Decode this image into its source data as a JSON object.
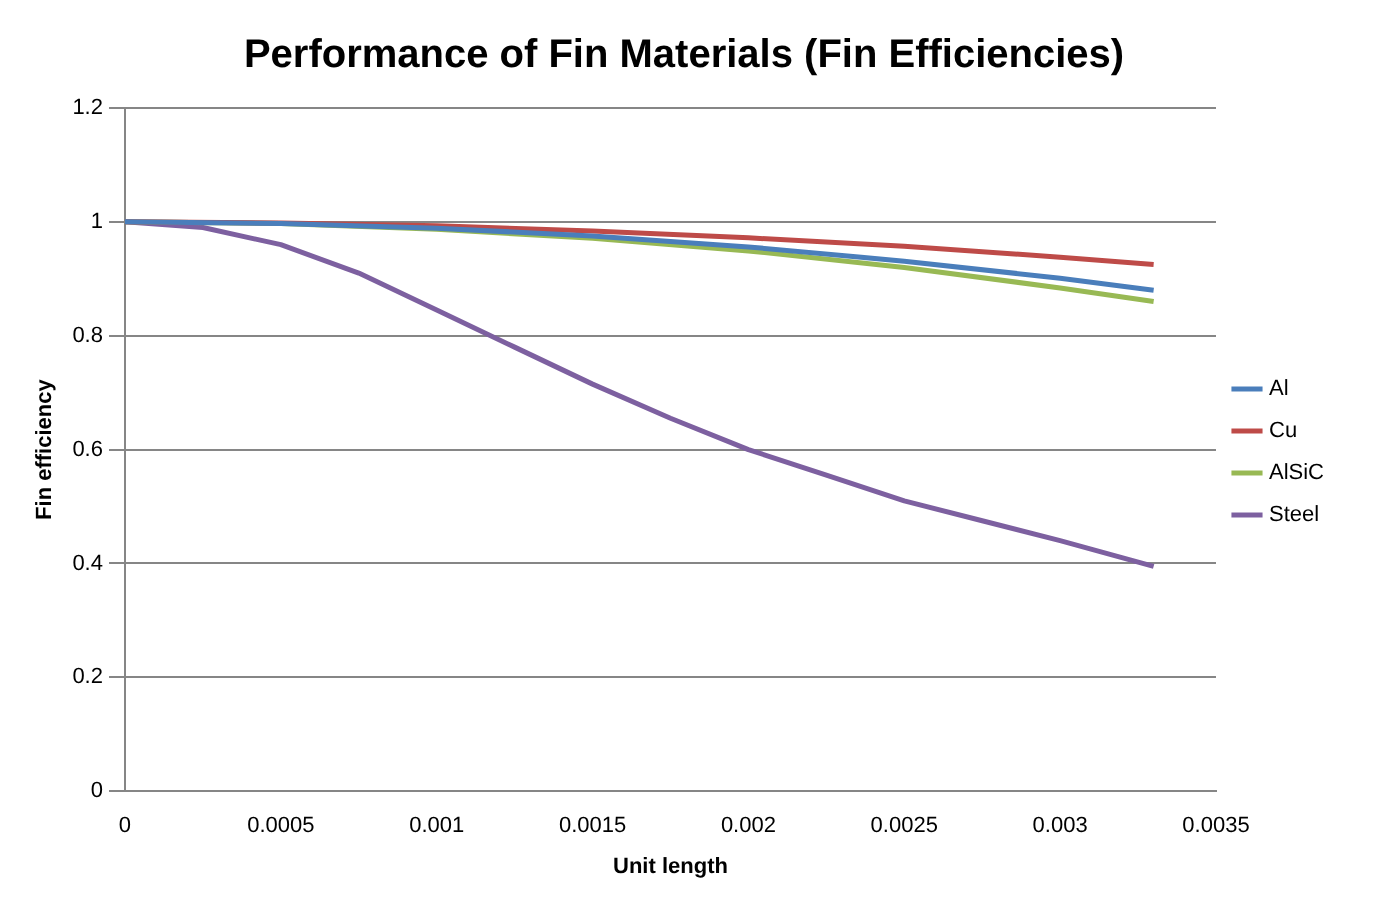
{
  "chart_data": {
    "type": "line",
    "title": "Performance of Fin Materials (Fin Efficiencies)",
    "xlabel": "Unit length",
    "ylabel": "Fin efficiency",
    "x": [
      0,
      0.0005,
      0.001,
      0.0015,
      0.002,
      0.0025,
      0.003,
      0.0033
    ],
    "series": [
      {
        "name": "Al",
        "color": "#4a7ebb",
        "values": [
          1,
          0.997,
          0.989,
          0.975,
          0.956,
          0.931,
          0.901,
          0.88
        ]
      },
      {
        "name": "Cu",
        "color": "#be4b48",
        "values": [
          1,
          0.998,
          0.993,
          0.984,
          0.972,
          0.957,
          0.938,
          0.925
        ]
      },
      {
        "name": "AlSiC",
        "color": "#98b954",
        "values": [
          1,
          0.997,
          0.987,
          0.971,
          0.949,
          0.92,
          0.884,
          0.86
        ]
      },
      {
        "name": "Steel",
        "color": "#7d60a0",
        "x": [
          0,
          0.00025,
          0.0005,
          0.00075,
          0.001,
          0.00125,
          0.0015,
          0.00175,
          0.002,
          0.00225,
          0.0025,
          0.00275,
          0.003,
          0.0033
        ],
        "values": [
          1,
          0.99,
          0.96,
          0.91,
          0.845,
          0.78,
          0.715,
          0.655,
          0.6,
          0.555,
          0.51,
          0.475,
          0.44,
          0.395
        ]
      }
    ],
    "xlim": [
      0,
      0.0035
    ],
    "xticks": [
      0,
      0.0005,
      0.001,
      0.0015,
      0.002,
      0.0025,
      0.003,
      0.0035
    ],
    "ylim": [
      0,
      1.2
    ],
    "yticks": [
      0,
      0.2,
      0.4,
      0.6,
      0.8,
      1,
      1.2
    ],
    "grid": "y",
    "legend": "right",
    "marker": "none",
    "line_style": "solid"
  }
}
